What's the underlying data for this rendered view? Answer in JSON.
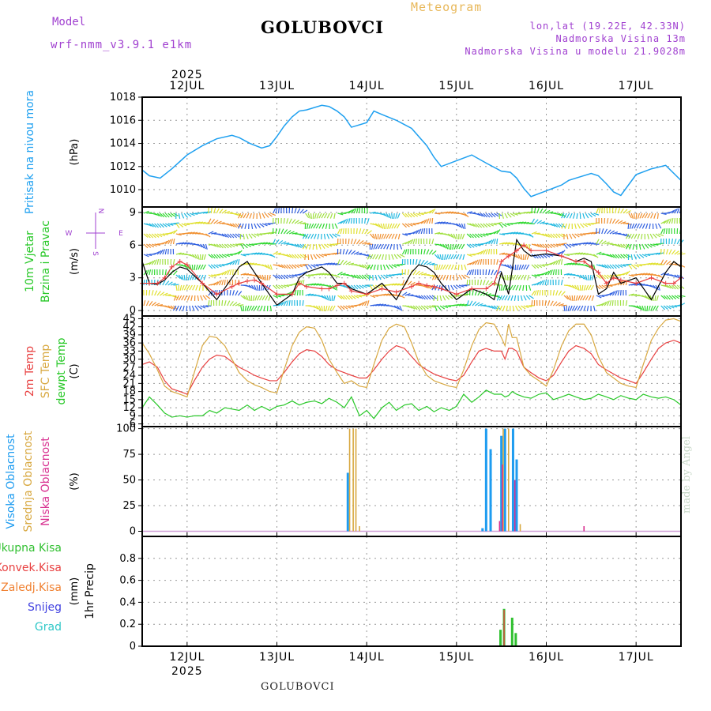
{
  "header": {
    "model_label": "Model",
    "model_run": "wrf-nmm_v3.9.1  e1km",
    "location": "GOLUBOVCI",
    "product": "Meteogram",
    "lonlat": "lon,lat (19.22E, 42.33N)",
    "elevation": "Nadmorska Visina 13m",
    "model_elevation": "Nadmorska Visina u modelu 21.9028m"
  },
  "footer": {
    "location": "GOLUBOVCI",
    "credit": "made by Angel"
  },
  "time_axis": {
    "year": "2025",
    "days": [
      "12JUL",
      "13JUL",
      "14JUL",
      "15JUL",
      "16JUL",
      "17JUL"
    ]
  },
  "chart_data": [
    {
      "type": "line",
      "ylabel": "Pritisak na nivou mora",
      "unit": "(hPa)",
      "ylim": [
        1008.5,
        1018
      ],
      "yticks": [
        1010,
        1012,
        1014,
        1016,
        1018
      ],
      "x_days": [
        11.5,
        11.58,
        11.7,
        11.83,
        12.0,
        12.17,
        12.33,
        12.5,
        12.58,
        12.7,
        12.83,
        12.92,
        13.0,
        13.08,
        13.17,
        13.25,
        13.33,
        13.5,
        13.58,
        13.67,
        13.75,
        13.83,
        14.0,
        14.08,
        14.17,
        14.33,
        14.5,
        14.67,
        14.75,
        14.83,
        15.0,
        15.17,
        15.33,
        15.5,
        15.6,
        15.67,
        15.75,
        15.83,
        16.0,
        16.17,
        16.25,
        16.33,
        16.5,
        16.58,
        16.67,
        16.75,
        16.83,
        17.0,
        17.17,
        17.33,
        17.5
      ],
      "series": [
        {
          "values": [
            1011.7,
            1011.2,
            1011.0,
            1011.8,
            1013.0,
            1013.8,
            1014.4,
            1014.7,
            1014.5,
            1014.0,
            1013.6,
            1013.8,
            1014.6,
            1015.5,
            1016.3,
            1016.8,
            1016.9,
            1017.3,
            1017.2,
            1016.8,
            1016.3,
            1015.4,
            1015.8,
            1016.8,
            1016.5,
            1016.0,
            1015.3,
            1013.8,
            1012.8,
            1012.0,
            1012.5,
            1013.0,
            1012.3,
            1011.6,
            1011.5,
            1011.0,
            1010.1,
            1009.4,
            1009.9,
            1010.4,
            1010.8,
            1011.0,
            1011.4,
            1011.2,
            1010.5,
            1009.8,
            1009.5,
            1011.3,
            1011.8,
            1012.1,
            1010.8
          ]
        }
      ]
    },
    {
      "type": "line",
      "ylabel": "10m Vjetar Brzina i Pravac",
      "unit": "(m/s)",
      "ylim": [
        -0.5,
        9.5
      ],
      "yticks": [
        0,
        3,
        6,
        9
      ],
      "compass": {
        "n": "N",
        "s": "S",
        "e": "E",
        "w": "W"
      },
      "x_days": [
        11.5,
        11.58,
        11.67,
        11.75,
        11.83,
        11.92,
        12.0,
        12.17,
        12.33,
        12.5,
        12.58,
        12.67,
        12.75,
        12.83,
        13.0,
        13.17,
        13.25,
        13.33,
        13.5,
        13.58,
        13.67,
        13.75,
        13.83,
        14.0,
        14.17,
        14.33,
        14.5,
        14.58,
        14.67,
        14.75,
        14.83,
        15.0,
        15.17,
        15.33,
        15.42,
        15.5,
        15.58,
        15.67,
        15.75,
        15.83,
        16.0,
        16.17,
        16.33,
        16.42,
        16.5,
        16.58,
        16.67,
        16.75,
        16.83,
        17.0,
        17.17,
        17.33,
        17.42,
        17.5
      ],
      "series": [
        {
          "name": "speed",
          "values": [
            4.5,
            2.5,
            2.4,
            2.8,
            3.5,
            4.0,
            3.8,
            2.5,
            1.0,
            3.0,
            4.0,
            4.5,
            3.5,
            2.5,
            0.5,
            1.5,
            3.0,
            3.5,
            4.0,
            3.5,
            2.5,
            2.5,
            2.0,
            1.5,
            2.5,
            1.0,
            3.5,
            4.2,
            4.0,
            3.5,
            2.5,
            1.0,
            2.0,
            1.5,
            1.0,
            3.5,
            1.5,
            6.5,
            5.5,
            5.0,
            5.2,
            5.0,
            4.5,
            4.8,
            4.5,
            1.5,
            2.0,
            3.5,
            2.5,
            3.0,
            1.0,
            3.5,
            4.5,
            4.0
          ]
        },
        {
          "name": "gust",
          "values": [
            2.5,
            2.5,
            2.5,
            3.0,
            4.0,
            4.5,
            4.2,
            2.5,
            1.5,
            2.2,
            2.5,
            2.7,
            2.8,
            2.5,
            1.5,
            1.5,
            2.5,
            2.2,
            2.0,
            2.0,
            2.3,
            2.5,
            1.8,
            1.5,
            2.0,
            1.7,
            2.2,
            2.5,
            2.3,
            2.2,
            2.0,
            1.5,
            2.0,
            2.0,
            2.5,
            4.5,
            5.0,
            5.5,
            6.0,
            5.5,
            5.5,
            5.0,
            4.5,
            4.5,
            4.0,
            3.5,
            2.5,
            3.0,
            2.8,
            2.5,
            3.0,
            2.5,
            2.5,
            3.0
          ]
        }
      ]
    },
    {
      "type": "line",
      "ylabel": "2m Temp, SFC Temp, dewpt Temp",
      "unit": "(C)",
      "ylim": [
        5,
        46
      ],
      "yticks": [
        6,
        9,
        12,
        15,
        18,
        21,
        24,
        27,
        30,
        33,
        36,
        39,
        42,
        45
      ],
      "x_days": [
        11.5,
        11.58,
        11.67,
        11.75,
        11.83,
        11.92,
        12.0,
        12.08,
        12.17,
        12.25,
        12.33,
        12.42,
        12.5,
        12.58,
        12.67,
        12.75,
        12.83,
        12.92,
        13.0,
        13.08,
        13.17,
        13.25,
        13.33,
        13.42,
        13.5,
        13.58,
        13.67,
        13.75,
        13.83,
        13.92,
        14.0,
        14.08,
        14.17,
        14.25,
        14.33,
        14.42,
        14.5,
        14.58,
        14.67,
        14.75,
        14.83,
        14.92,
        15.0,
        15.08,
        15.17,
        15.25,
        15.33,
        15.42,
        15.5,
        15.54,
        15.58,
        15.62,
        15.67,
        15.75,
        15.83,
        15.92,
        16.0,
        16.08,
        16.17,
        16.25,
        16.33,
        16.42,
        16.5,
        16.58,
        16.67,
        16.75,
        16.83,
        16.92,
        17.0,
        17.08,
        17.17,
        17.25,
        17.33,
        17.42,
        17.5
      ],
      "series": [
        {
          "name": "2m",
          "values": [
            28,
            29,
            27,
            22,
            19,
            18,
            17,
            22,
            27,
            30,
            31.5,
            31,
            29,
            27,
            25.5,
            24,
            23,
            22,
            22,
            25,
            29,
            32,
            33.5,
            33,
            31,
            28,
            26,
            25,
            24,
            23,
            23,
            26,
            30,
            33,
            35,
            34,
            31,
            28,
            26,
            24.5,
            23.5,
            22.5,
            22,
            24,
            29,
            33,
            34,
            33,
            33,
            30,
            34,
            34,
            33,
            27,
            25,
            23,
            22,
            24,
            29,
            33,
            35,
            34,
            32,
            28,
            26,
            24.5,
            23,
            22,
            21,
            25,
            30,
            34,
            36,
            37,
            36
          ]
        },
        {
          "name": "SFC",
          "values": [
            36,
            32,
            26,
            20,
            18,
            17,
            16,
            25,
            35,
            38.5,
            38,
            35,
            30,
            25,
            22,
            20.5,
            19.5,
            18,
            17.5,
            26,
            35,
            40,
            42,
            41.5,
            37,
            30,
            25,
            21,
            22,
            20,
            19.5,
            28,
            37,
            41.5,
            43,
            42,
            36,
            29,
            24,
            22,
            21,
            20,
            19.5,
            26,
            35,
            41,
            43.5,
            43,
            38,
            35,
            43,
            38,
            38,
            27,
            24,
            22,
            20,
            26,
            35,
            40.5,
            43,
            43,
            39,
            31,
            25,
            23,
            21,
            20,
            19.5,
            28,
            37,
            41.5,
            44.5,
            45,
            44
          ]
        },
        {
          "name": "dewpt",
          "values": [
            12,
            16,
            13,
            10,
            8.5,
            9,
            8.5,
            9,
            9,
            11,
            10,
            12,
            11.5,
            11,
            13,
            11,
            12.5,
            11,
            12.5,
            13,
            14.5,
            13,
            14,
            14.5,
            13.5,
            15.5,
            14,
            12,
            16,
            9,
            11,
            8,
            12,
            14,
            11,
            13,
            13.5,
            11,
            12.5,
            10.5,
            12,
            11,
            12.5,
            17,
            14,
            16,
            18.5,
            17,
            17,
            16,
            16.5,
            18,
            17,
            16,
            15.5,
            17,
            17.5,
            15,
            16,
            17,
            16,
            15,
            15.5,
            17,
            16,
            15,
            16.5,
            15.5,
            15,
            17,
            16,
            15.5,
            16,
            15,
            13
          ]
        }
      ]
    },
    {
      "type": "bar",
      "ylabel": "Visoka Oblacnost, Srednja Oblacnost, Niska Oblacnost",
      "unit": "(%)",
      "ylim": [
        -5,
        102
      ],
      "yticks": [
        0,
        25,
        50,
        75,
        100
      ],
      "series": [
        {
          "name": "Visoka",
          "x_days": [
            13.79,
            15.29,
            15.33,
            15.38,
            15.5,
            15.54,
            15.63,
            15.67
          ],
          "values": [
            57,
            3,
            100,
            80,
            93,
            100,
            100,
            70
          ]
        },
        {
          "name": "Srednja",
          "x_days": [
            13.81,
            13.85,
            13.88,
            13.92,
            15.52,
            15.58,
            15.71
          ],
          "values": [
            100,
            100,
            100,
            5,
            100,
            100,
            7
          ]
        },
        {
          "name": "Niska",
          "x_days": [
            15.48,
            15.51,
            15.65,
            16.42
          ],
          "values": [
            10,
            65,
            50,
            5
          ]
        }
      ]
    },
    {
      "type": "bar",
      "ylabel": "1hr Precip",
      "unit": "(mm)",
      "ylim": [
        0,
        1.0
      ],
      "yticks": [
        0,
        0.2,
        0.4,
        0.6,
        0.8
      ],
      "legend": [
        "Ukupna  Kisa",
        "Konvek.Kisa",
        "Zaledj.Kisa",
        "Snijeg",
        "Grad"
      ],
      "series": [
        {
          "name": "Ukupna Kisa",
          "x_days": [
            15.49,
            15.53,
            15.62,
            15.66
          ],
          "values": [
            0.15,
            0.34,
            0.26,
            0.12
          ]
        },
        {
          "name": "Konvek.Kisa",
          "x_days": [
            15.53
          ],
          "values": [
            0.33
          ]
        }
      ]
    }
  ],
  "colors": {
    "pressure": "#1ea0f0",
    "t2m": "#e84040",
    "tsfc": "#d8a840",
    "dewpt": "#28c828",
    "cloud_high": "#1e9cf0",
    "cloud_mid": "#d8a840",
    "cloud_low": "#d83090",
    "precip_total": "#30c030",
    "precip_conv": "#e84040",
    "precip_frz": "#f08030",
    "snow": "#4040e0",
    "hail": "#30c8c8",
    "label_violet": "#a040d0"
  }
}
